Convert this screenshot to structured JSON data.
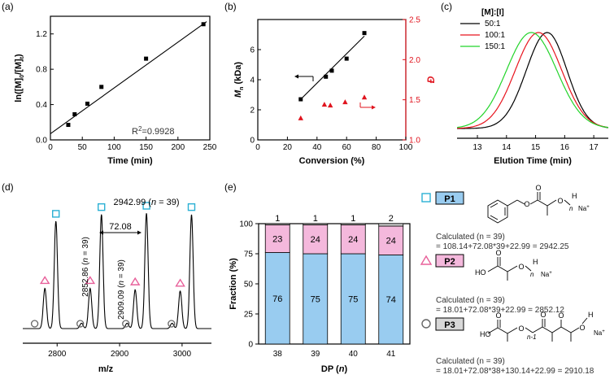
{
  "panel_labels": {
    "a": "(a)",
    "b": "(b)",
    "c": "(c)",
    "d": "(d)",
    "e": "(e)"
  },
  "chart_data": [
    {
      "id": "a",
      "type": "scatter",
      "xlabel": "Time (min)",
      "ylabel_parts": [
        "ln([M]",
        "0",
        "/[M]",
        "t",
        ")"
      ],
      "xlim": [
        0,
        250
      ],
      "ylim": [
        0.0,
        1.4
      ],
      "xticks": [
        0,
        50,
        100,
        150,
        200,
        250
      ],
      "yticks": [
        0.0,
        0.4,
        0.8,
        1.2
      ],
      "x": [
        28,
        38,
        58,
        80,
        150,
        240
      ],
      "y": [
        0.17,
        0.29,
        0.41,
        0.6,
        0.92,
        1.31
      ],
      "fit_line": {
        "x": [
          0,
          245
        ],
        "y": [
          0.07,
          1.34
        ]
      },
      "annotation": "R",
      "annotation_sup": "2",
      "annotation_value": "=0.9928"
    },
    {
      "id": "b",
      "type": "scatter",
      "xlabel": "Conversion (%)",
      "ylabel_left_main": "M",
      "ylabel_left_sub": "n",
      "ylabel_left_unit": " (kDa)",
      "ylabel_right": "Đ",
      "xlim": [
        0,
        100
      ],
      "ylim_left": [
        0,
        8
      ],
      "ylim_right": [
        1.0,
        2.5
      ],
      "xticks": [
        0,
        20,
        40,
        60,
        80,
        100
      ],
      "yticks_left": [
        0,
        2,
        4,
        6
      ],
      "yticks_right": [
        1.0,
        1.5,
        2.0,
        2.5
      ],
      "series_mn": {
        "x": [
          29,
          46,
          50,
          60,
          72
        ],
        "y": [
          2.7,
          4.2,
          4.6,
          5.4,
          7.1
        ]
      },
      "fit_line": {
        "x": [
          28,
          72
        ],
        "y": [
          2.6,
          6.9
        ]
      },
      "series_dispersity": {
        "x": [
          29,
          45,
          49,
          59,
          72
        ],
        "y": [
          1.27,
          1.44,
          1.43,
          1.47,
          1.53
        ]
      },
      "left_color": "#000000",
      "right_color": "#e0141e"
    },
    {
      "id": "c",
      "type": "line",
      "xlabel": "Elution Time (min)",
      "legend_title": "[M]:[I]",
      "xlim": [
        12.3,
        17.5
      ],
      "xticks": [
        13,
        14,
        15,
        16,
        17
      ],
      "series": [
        {
          "name": "50:1",
          "color": "#000000",
          "peak": 15.4,
          "sigma_left": 0.72,
          "sigma_right": 0.68
        },
        {
          "name": "100:1",
          "color": "#e8141e",
          "peak": 15.1,
          "sigma_left": 0.8,
          "sigma_right": 0.8
        },
        {
          "name": "150:1",
          "color": "#22d42a",
          "peak": 14.85,
          "sigma_left": 0.85,
          "sigma_right": 0.88
        }
      ]
    },
    {
      "id": "d",
      "type": "line",
      "xlabel": "m/z",
      "xlim": [
        2745,
        3047
      ],
      "xticks": [
        2800,
        2900,
        3000
      ],
      "peaks": [
        {
          "mz": 2780.4,
          "h": 0.3,
          "marker": "triangle"
        },
        {
          "mz": 2798.0,
          "h": 0.8,
          "marker": "square"
        },
        {
          "mz": 2852.8,
          "h": 0.3,
          "marker": "triangle"
        },
        {
          "mz": 2870.9,
          "h": 0.85,
          "marker": "square"
        },
        {
          "mz": 2924.9,
          "h": 0.29,
          "marker": "triangle"
        },
        {
          "mz": 2942.99,
          "h": 0.86,
          "marker": "square"
        },
        {
          "mz": 2997.0,
          "h": 0.28,
          "marker": "triangle"
        },
        {
          "mz": 3015.1,
          "h": 0.85,
          "marker": "square"
        }
      ],
      "small_peaks": [
        {
          "mz": 2839.0,
          "h": 0.04
        },
        {
          "mz": 2912.0,
          "h": 0.04
        },
        {
          "mz": 2984.0,
          "h": 0.04
        }
      ],
      "circles_mz": [
        2764,
        2837,
        2910,
        2983
      ],
      "label_top": "2942.99 (n = 39)",
      "label_top_parts": [
        "2942.99 (",
        "n",
        " = 39)"
      ],
      "label_spacing": "72.08",
      "label_vert1_parts": [
        "2852.86 (",
        "n",
        " = 39)"
      ],
      "label_vert2_parts": [
        "2909.09 (",
        "n",
        " = 39)"
      ],
      "square_color": "#2ab0d4",
      "triangle_color": "#e8609a",
      "circle_color": "#666666"
    },
    {
      "id": "e",
      "type": "bar",
      "stacked": true,
      "xlabel_parts": [
        "DP (",
        "n",
        ")"
      ],
      "ylabel": "Fraction (%)",
      "categories": [
        "38",
        "39",
        "40",
        "41"
      ],
      "ylim": [
        0,
        100
      ],
      "yticks": [
        0,
        25,
        50,
        75,
        100
      ],
      "series": [
        {
          "name": "P1",
          "values": [
            76,
            75,
            75,
            74
          ],
          "color": "#99ccf0"
        },
        {
          "name": "P2",
          "values": [
            23,
            24,
            24,
            24
          ],
          "color": "#f4b8dc"
        },
        {
          "name": "P3",
          "values": [
            1,
            1,
            1,
            2
          ],
          "color": "#d8d8d8"
        }
      ]
    }
  ],
  "legend_e": {
    "p1": {
      "label": "P1",
      "calc_line1": "Calculated (n = 39)",
      "calc_line2": "= 108.14+72.08*39+22.99 = 2942.25"
    },
    "p2": {
      "label": "P2",
      "calc_line1": "Calculated (n = 39)",
      "calc_line2": "= 18.01+72.08*39+22.99 = 2852.12"
    },
    "p3": {
      "label": "P3",
      "calc_line1": "Calculated (n = 39)",
      "calc_line2": "= 18.01+72.08*38+130.14+22.99 = 2910.18"
    },
    "na": "Na",
    "na_sup": "+",
    "sub_n": "n",
    "sub_n1": "n-1",
    "o": "O",
    "h": "H",
    "ho": "HO"
  }
}
